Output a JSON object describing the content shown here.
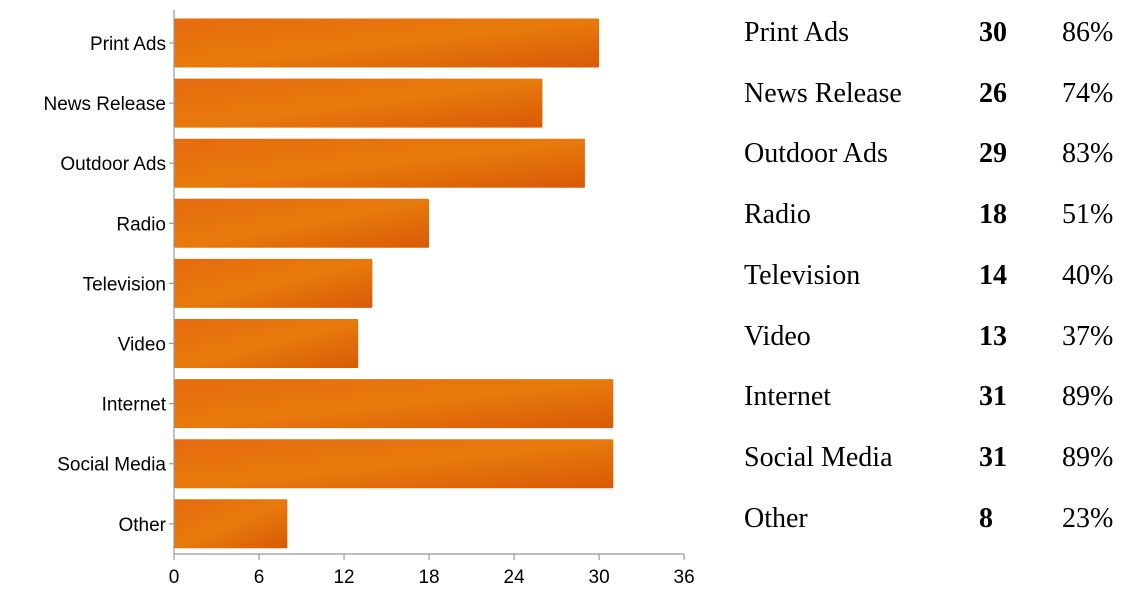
{
  "chart_data": {
    "type": "bar",
    "orientation": "horizontal",
    "categories": [
      "Print Ads",
      "News Release",
      "Outdoor Ads",
      "Radio",
      "Television",
      "Video",
      "Internet",
      "Social Media",
      "Other"
    ],
    "values": [
      30,
      26,
      29,
      18,
      14,
      13,
      31,
      31,
      8
    ],
    "xlim": [
      0,
      36
    ],
    "xticks": [
      "0",
      "6",
      "12",
      "18",
      "24",
      "30",
      "36"
    ],
    "title": "",
    "xlabel": "",
    "ylabel": "",
    "grid": false,
    "bar_color": "#e8690a"
  },
  "summary_table": {
    "rows": [
      {
        "name": "Print Ads",
        "count": "30",
        "percent": "86%"
      },
      {
        "name": "News Release",
        "count": "26",
        "percent": "74%"
      },
      {
        "name": "Outdoor Ads",
        "count": "29",
        "percent": "83%"
      },
      {
        "name": "Radio",
        "count": "18",
        "percent": "51%"
      },
      {
        "name": "Television",
        "count": "14",
        "percent": "40%"
      },
      {
        "name": "Video",
        "count": "13",
        "percent": "37%"
      },
      {
        "name": "Internet",
        "count": "31",
        "percent": "89%"
      },
      {
        "name": "Social Media",
        "count": "31",
        "percent": "89%"
      },
      {
        "name": "Other",
        "count": "8",
        "percent": "23%"
      }
    ]
  }
}
